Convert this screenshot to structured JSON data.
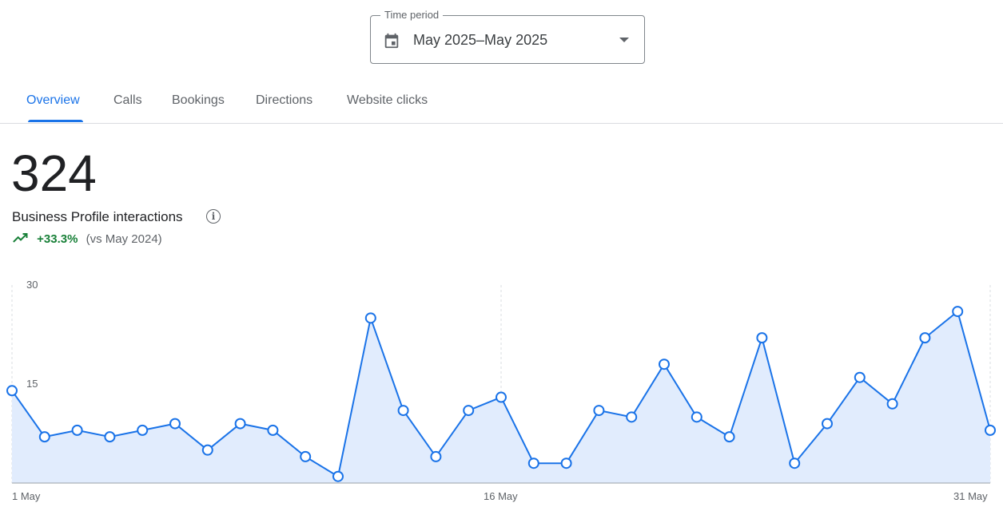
{
  "time_period": {
    "label": "Time period",
    "value": "May 2025–May 2025",
    "icon": "calendar-icon"
  },
  "tabs": [
    {
      "label": "Overview",
      "active": true
    },
    {
      "label": "Calls"
    },
    {
      "label": "Bookings"
    },
    {
      "label": "Directions"
    },
    {
      "label": "Website clicks"
    }
  ],
  "summary": {
    "total": "324",
    "metric": "Business Profile interactions",
    "change": "+33.3%",
    "comparison": "(vs May 2024)",
    "change_color": "#188038"
  },
  "chart_data": {
    "type": "area",
    "x": [
      1,
      2,
      3,
      4,
      5,
      6,
      7,
      8,
      9,
      10,
      11,
      12,
      13,
      14,
      15,
      16,
      17,
      18,
      19,
      20,
      21,
      22,
      23,
      24,
      25,
      26,
      27,
      28,
      29,
      30,
      31
    ],
    "values": [
      14,
      7,
      8,
      7,
      8,
      9,
      5,
      9,
      8,
      4,
      1,
      25,
      11,
      4,
      11,
      13,
      3,
      3,
      11,
      10,
      18,
      10,
      7,
      22,
      3,
      9,
      16,
      12,
      22,
      26,
      8
    ],
    "ylim": [
      0,
      30
    ],
    "yticks": [
      "15",
      "30"
    ],
    "ytick_values": [
      15,
      30
    ],
    "xticks": [
      "1 May",
      "16 May",
      "31 May"
    ],
    "xtick_values": [
      1,
      16,
      31
    ],
    "color": "#1a73e8",
    "fill": "#e1ecfd"
  }
}
